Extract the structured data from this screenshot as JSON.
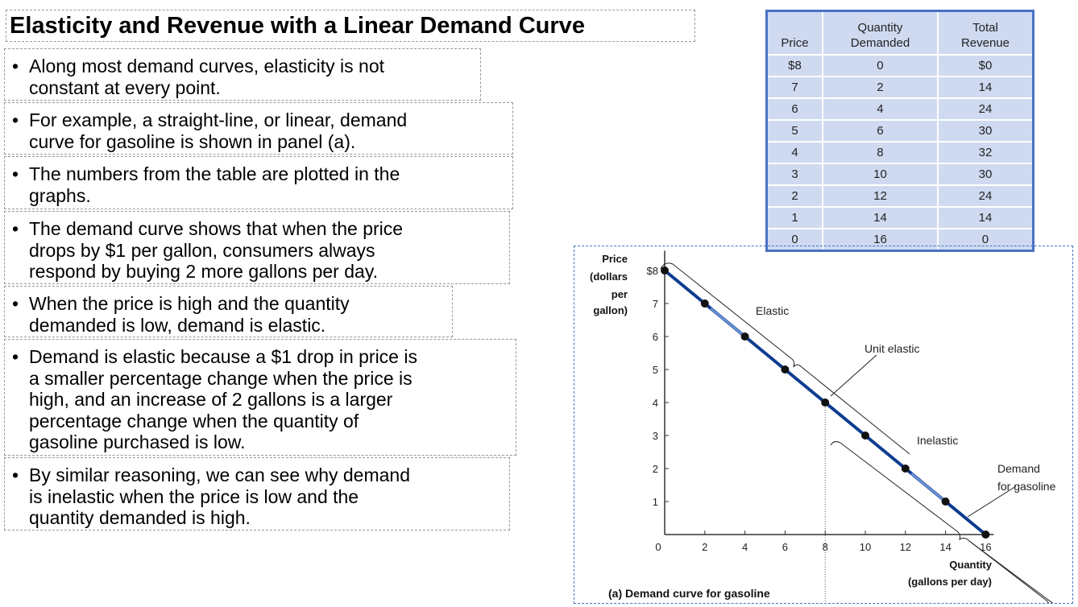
{
  "title": "Elasticity and Revenue with a Linear Demand Curve",
  "bullets": [
    {
      "lines": [
        "Along most demand curves, elasticity is not",
        "constant at every point."
      ]
    },
    {
      "lines": [
        "For example, a straight-line, or linear, demand",
        "curve for gasoline is shown in panel (a)."
      ]
    },
    {
      "lines": [
        "The numbers from the table are plotted in the",
        "graphs."
      ]
    },
    {
      "lines": [
        "The demand curve shows that when the price",
        "drops by $1 per gallon, consumers always",
        "respond by buying 2 more gallons per day."
      ]
    },
    {
      "lines": [
        "When the price is high and the  quantity",
        "demanded is low, demand is elastic."
      ]
    },
    {
      "lines": [
        "Demand is elastic because a $1 drop in price is",
        "a smaller percentage change when the price is",
        "high, and an increase of 2 gallons is a larger",
        "percentage change when the quantity of",
        "gasoline purchased is low."
      ]
    },
    {
      "lines": [
        "By similar reasoning, we can see why demand",
        "is inelastic when the price is low and the",
        "quantity demanded is high."
      ]
    }
  ],
  "bullet_char": "•",
  "table": {
    "headers": [
      [
        "",
        "Price"
      ],
      [
        "Quantity",
        "Demanded"
      ],
      [
        "Total",
        "Revenue"
      ]
    ],
    "rows": [
      [
        "$8",
        "0",
        "$0"
      ],
      [
        "7",
        "2",
        "14"
      ],
      [
        "6",
        "4",
        "24"
      ],
      [
        "5",
        "6",
        "30"
      ],
      [
        "4",
        "8",
        "32"
      ],
      [
        "3",
        "10",
        "30"
      ],
      [
        "2",
        "12",
        "24"
      ],
      [
        "1",
        "14",
        "14"
      ],
      [
        "0",
        "16",
        "0"
      ]
    ]
  },
  "chart_data": {
    "type": "line",
    "title": "(a) Demand curve for gasoline",
    "xlabel": [
      "Quantity",
      "(gallons per day)"
    ],
    "ylabel": [
      "Price",
      "(dollars",
      "per",
      "gallon)"
    ],
    "x": [
      0,
      2,
      4,
      6,
      8,
      10,
      12,
      14,
      16
    ],
    "y": [
      8,
      7,
      6,
      5,
      4,
      3,
      2,
      1,
      0
    ],
    "xlim": [
      0,
      16
    ],
    "ylim": [
      0,
      8
    ],
    "xticks": [
      "0",
      "2",
      "4",
      "6",
      "8",
      "10",
      "12",
      "14",
      "16"
    ],
    "yticks": [
      "",
      "1",
      "2",
      "3",
      "4",
      "5",
      "6",
      "7",
      "$8"
    ],
    "series_label": [
      "Demand",
      "for gasoline"
    ],
    "annotations": {
      "elastic": "Elastic",
      "unit": "Unit elastic",
      "inelastic": "Inelastic"
    },
    "line_color": "#0d3c8f"
  }
}
